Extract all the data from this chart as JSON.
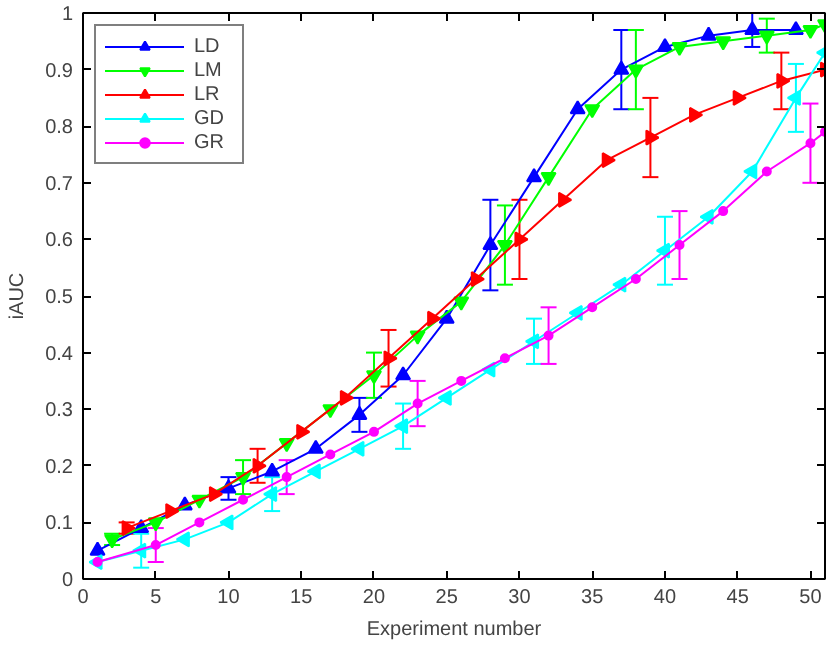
{
  "chart_data": {
    "type": "line",
    "xlabel": "Experiment number",
    "ylabel": "iAUC",
    "xlim": [
      0,
      51
    ],
    "ylim": [
      0,
      1
    ],
    "xticks": [
      0,
      5,
      10,
      15,
      20,
      25,
      30,
      35,
      40,
      45,
      50
    ],
    "yticks": [
      0,
      0.1,
      0.2,
      0.3,
      0.4,
      0.5,
      0.6,
      0.7,
      0.8,
      0.9,
      1
    ],
    "grid": false,
    "legend": "top left",
    "line_style": "solid",
    "series": [
      {
        "name": "LD",
        "color": "#0000ff",
        "marker": "triangle",
        "x": [
          1,
          4,
          7,
          10,
          13,
          16,
          19,
          22,
          25,
          28,
          31,
          34,
          37,
          40,
          43,
          46,
          49
        ],
        "values": [
          0.05,
          0.09,
          0.13,
          0.16,
          0.19,
          0.23,
          0.29,
          0.36,
          0.46,
          0.59,
          0.71,
          0.83,
          0.9,
          0.94,
          0.96,
          0.97,
          0.97
        ],
        "errors": [
          null,
          null,
          null,
          0.02,
          null,
          null,
          0.03,
          null,
          null,
          0.08,
          null,
          null,
          0.07,
          null,
          null,
          0.03,
          null
        ]
      },
      {
        "name": "LM",
        "color": "#00ff00",
        "marker": "triangle_down",
        "x": [
          2,
          5,
          8,
          11,
          14,
          17,
          20,
          23,
          26,
          29,
          32,
          35,
          38,
          41,
          44,
          47,
          50,
          51
        ],
        "values": [
          0.07,
          0.1,
          0.14,
          0.18,
          0.24,
          0.3,
          0.36,
          0.43,
          0.49,
          0.59,
          0.71,
          0.83,
          0.9,
          0.94,
          0.95,
          0.96,
          0.97,
          0.98
        ],
        "errors": [
          0.01,
          null,
          null,
          0.03,
          null,
          null,
          0.04,
          null,
          null,
          0.07,
          null,
          null,
          0.07,
          null,
          null,
          0.03,
          null,
          null
        ]
      },
      {
        "name": "LR",
        "color": "#ff0000",
        "marker": "triangle_right",
        "x": [
          3,
          6,
          9,
          12,
          15,
          18,
          21,
          24,
          27,
          30,
          33,
          36,
          39,
          42,
          45,
          48,
          51
        ],
        "values": [
          0.09,
          0.12,
          0.15,
          0.2,
          0.26,
          0.32,
          0.39,
          0.46,
          0.53,
          0.6,
          0.67,
          0.74,
          0.78,
          0.82,
          0.85,
          0.88,
          0.9
        ],
        "errors": [
          0.01,
          null,
          null,
          0.03,
          null,
          null,
          0.05,
          null,
          null,
          0.07,
          null,
          null,
          0.07,
          null,
          null,
          0.05,
          null
        ]
      },
      {
        "name": "GD",
        "color": "#00ffff",
        "marker": "triangle_left",
        "x": [
          1,
          4,
          7,
          10,
          13,
          16,
          19,
          22,
          25,
          28,
          31,
          34,
          37,
          40,
          43,
          46,
          49,
          51
        ],
        "values": [
          0.03,
          0.05,
          0.07,
          0.1,
          0.15,
          0.19,
          0.23,
          0.27,
          0.32,
          0.37,
          0.42,
          0.47,
          0.52,
          0.58,
          0.64,
          0.72,
          0.85,
          0.93
        ],
        "errors": [
          null,
          0.03,
          null,
          null,
          0.03,
          null,
          null,
          0.04,
          null,
          null,
          0.04,
          null,
          null,
          0.06,
          null,
          null,
          0.06,
          null
        ]
      },
      {
        "name": "GR",
        "color": "#ff00ff",
        "marker": "circle",
        "x": [
          1,
          5,
          8,
          11,
          14,
          17,
          20,
          23,
          26,
          29,
          32,
          35,
          38,
          41,
          44,
          47,
          50,
          51
        ],
        "values": [
          0.03,
          0.06,
          0.1,
          0.14,
          0.18,
          0.22,
          0.26,
          0.31,
          0.35,
          0.39,
          0.43,
          0.48,
          0.53,
          0.59,
          0.65,
          0.72,
          0.77,
          0.79
        ],
        "errors": [
          null,
          0.03,
          null,
          null,
          0.03,
          null,
          null,
          0.04,
          null,
          null,
          0.05,
          null,
          null,
          0.06,
          null,
          null,
          0.07,
          null
        ]
      }
    ]
  }
}
